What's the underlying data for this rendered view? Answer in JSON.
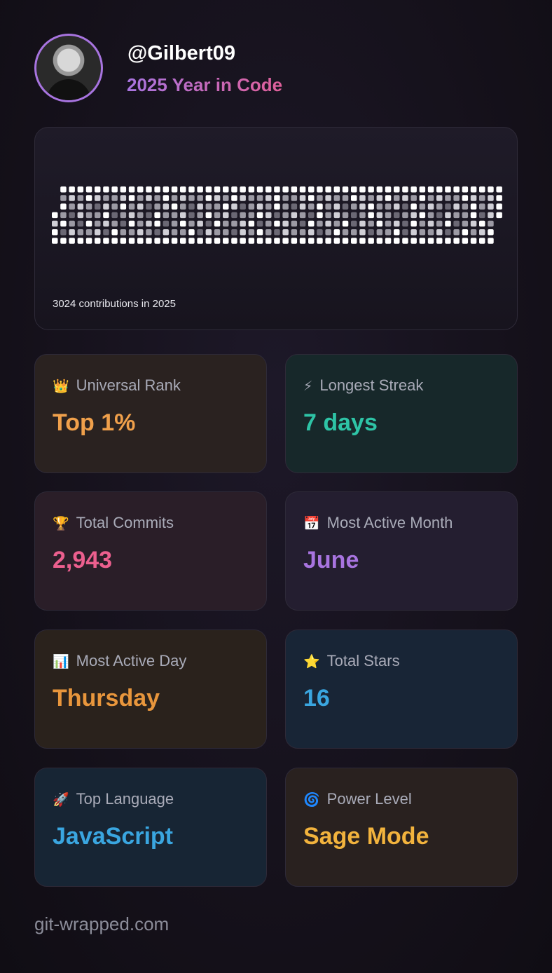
{
  "profile": {
    "handle": "@Gilbert09",
    "subtitle": "2025 Year in Code"
  },
  "contributions": {
    "caption": "3024 contributions in 2025",
    "levels": [
      [
        null,
        4,
        4,
        4,
        4,
        4,
        4,
        4,
        4,
        4,
        4,
        4,
        4,
        4,
        4,
        4,
        4,
        4,
        4,
        4,
        4,
        4,
        4,
        4,
        4,
        4,
        4,
        4,
        4,
        4,
        4,
        4,
        4,
        4,
        4,
        4,
        4,
        4,
        4,
        4,
        4,
        4,
        4,
        4,
        4,
        4,
        4,
        4,
        4,
        4,
        4,
        4,
        4
      ],
      [
        null,
        2,
        3,
        2,
        4,
        3,
        2,
        2,
        3,
        4,
        2,
        3,
        2,
        4,
        2,
        3,
        2,
        2,
        4,
        3,
        2,
        4,
        3,
        2,
        2,
        3,
        4,
        2,
        2,
        3,
        4,
        2,
        3,
        2,
        2,
        4,
        3,
        2,
        3,
        4,
        2,
        3,
        2,
        4,
        2,
        3,
        2,
        2,
        4,
        3,
        2,
        3,
        4
      ],
      [
        null,
        4,
        2,
        3,
        2,
        1,
        3,
        2,
        4,
        2,
        3,
        1,
        2,
        3,
        4,
        2,
        1,
        3,
        2,
        2,
        4,
        3,
        1,
        2,
        3,
        2,
        4,
        2,
        1,
        3,
        2,
        4,
        2,
        3,
        1,
        2,
        3,
        4,
        2,
        2,
        3,
        1,
        4,
        2,
        3,
        2,
        1,
        3,
        2,
        4,
        2,
        3,
        4
      ],
      [
        4,
        2,
        1,
        3,
        2,
        2,
        4,
        1,
        2,
        3,
        2,
        1,
        4,
        2,
        2,
        3,
        1,
        2,
        4,
        2,
        3,
        1,
        2,
        2,
        4,
        3,
        1,
        2,
        3,
        2,
        1,
        4,
        2,
        3,
        2,
        1,
        2,
        4,
        3,
        2,
        1,
        2,
        3,
        4,
        2,
        1,
        3,
        2,
        2,
        4,
        1,
        3,
        4
      ],
      [
        3,
        4,
        2,
        1,
        4,
        2,
        3,
        2,
        1,
        4,
        2,
        3,
        4,
        1,
        2,
        4,
        2,
        3,
        1,
        4,
        2,
        2,
        3,
        4,
        1,
        2,
        4,
        3,
        2,
        1,
        4,
        2,
        3,
        2,
        4,
        1,
        3,
        2,
        4,
        2,
        3,
        1,
        4,
        2,
        3,
        2,
        4,
        1,
        2,
        3,
        4,
        2,
        null
      ],
      [
        4,
        1,
        3,
        2,
        2,
        3,
        1,
        4,
        2,
        2,
        3,
        2,
        1,
        3,
        2,
        2,
        4,
        1,
        3,
        2,
        2,
        1,
        3,
        2,
        4,
        2,
        1,
        3,
        2,
        2,
        3,
        1,
        2,
        4,
        2,
        2,
        3,
        1,
        2,
        2,
        4,
        1,
        3,
        2,
        2,
        3,
        1,
        2,
        4,
        2,
        3,
        4,
        null
      ],
      [
        4,
        4,
        4,
        4,
        4,
        4,
        4,
        4,
        4,
        4,
        4,
        4,
        4,
        4,
        4,
        4,
        4,
        4,
        4,
        4,
        4,
        4,
        4,
        4,
        4,
        4,
        4,
        4,
        4,
        4,
        4,
        4,
        4,
        4,
        4,
        4,
        4,
        4,
        4,
        4,
        4,
        4,
        4,
        4,
        4,
        4,
        4,
        4,
        4,
        4,
        4,
        4,
        null
      ]
    ]
  },
  "stats": [
    {
      "icon": "👑",
      "label": "Universal Rank",
      "value": "Top 1%",
      "color": "#f0a04b"
    },
    {
      "icon": "⚡",
      "label": "Longest Streak",
      "value": "7 days",
      "color": "#2ec4a6"
    },
    {
      "icon": "🏆",
      "label": "Total Commits",
      "value": "2,943",
      "color": "#ec5f8e"
    },
    {
      "icon": "📅",
      "label": "Most Active Month",
      "value": "June",
      "color": "#a874e0"
    },
    {
      "icon": "📊",
      "label": "Most Active Day",
      "value": "Thursday",
      "color": "#e8963c"
    },
    {
      "icon": "⭐",
      "label": "Total Stars",
      "value": "16",
      "color": "#3aa6e0"
    },
    {
      "icon": "🚀",
      "label": "Top Language",
      "value": "JavaScript",
      "color": "#3aa6e0"
    },
    {
      "icon": "🌀",
      "label": "Power Level",
      "value": "Sage Mode",
      "color": "#f2b33d"
    }
  ],
  "footer": "git-wrapped.com"
}
